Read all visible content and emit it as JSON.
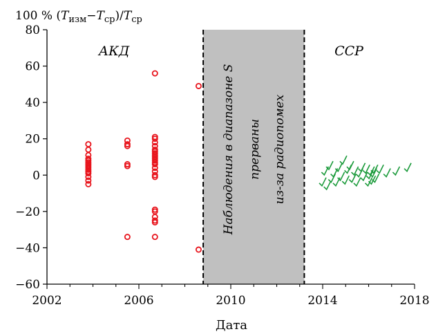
{
  "chart_data": {
    "type": "scatter",
    "ylabel": {
      "prefix": "100 % (",
      "t1": "T",
      "t1_sub": "изм",
      "minus": "−",
      "t2": "T",
      "t2_sub": "ср",
      "close": ")/",
      "t3": "T",
      "t3_sub": "ср"
    },
    "xlabel": "Дата",
    "xlim": [
      2002,
      2018
    ],
    "ylim": [
      -60,
      80
    ],
    "xticks": [
      2002,
      2006,
      2010,
      2014,
      2018
    ],
    "yticks": [
      -60,
      -40,
      -20,
      0,
      20,
      40,
      60,
      80
    ],
    "ytick_labels": [
      "−60",
      "−40",
      "−20",
      "0",
      "20",
      "40",
      "60",
      "80"
    ],
    "regions": [
      {
        "label": "АКД"
      },
      {
        "label": "ССР"
      }
    ],
    "gap": {
      "x_range": [
        2008.8,
        2013.2
      ],
      "fill": "#c0c0c0",
      "lines": [
        "Наблюдения в диапазоне S",
        "прерваны",
        "из-за радиопомех"
      ]
    },
    "series": [
      {
        "marker": "circle",
        "color": "#e8141c",
        "points": [
          [
            2003.8,
            17
          ],
          [
            2003.8,
            14
          ],
          [
            2003.8,
            11
          ],
          [
            2003.8,
            9
          ],
          [
            2003.8,
            8
          ],
          [
            2003.8,
            7
          ],
          [
            2003.8,
            6
          ],
          [
            2003.8,
            5
          ],
          [
            2003.8,
            4
          ],
          [
            2003.8,
            3
          ],
          [
            2003.8,
            2
          ],
          [
            2003.8,
            1
          ],
          [
            2003.8,
            -1
          ],
          [
            2003.8,
            -3
          ],
          [
            2003.8,
            -5
          ],
          [
            2005.5,
            19
          ],
          [
            2005.5,
            17
          ],
          [
            2005.5,
            16
          ],
          [
            2005.5,
            6
          ],
          [
            2005.5,
            5
          ],
          [
            2005.5,
            -34
          ],
          [
            2006.7,
            56
          ],
          [
            2006.7,
            21
          ],
          [
            2006.7,
            20
          ],
          [
            2006.7,
            18
          ],
          [
            2006.7,
            16
          ],
          [
            2006.7,
            14
          ],
          [
            2006.7,
            13
          ],
          [
            2006.7,
            12
          ],
          [
            2006.7,
            11
          ],
          [
            2006.7,
            10
          ],
          [
            2006.7,
            9
          ],
          [
            2006.7,
            8
          ],
          [
            2006.7,
            7
          ],
          [
            2006.7,
            6
          ],
          [
            2006.7,
            4
          ],
          [
            2006.7,
            2
          ],
          [
            2006.7,
            0
          ],
          [
            2006.7,
            -1
          ],
          [
            2006.7,
            -19
          ],
          [
            2006.7,
            -20
          ],
          [
            2006.7,
            -23
          ],
          [
            2006.7,
            -25
          ],
          [
            2006.7,
            -26
          ],
          [
            2006.7,
            -34
          ],
          [
            2008.6,
            49
          ],
          [
            2008.6,
            -41
          ]
        ]
      },
      {
        "marker": "check",
        "color": "#1a9a3a",
        "points": [
          [
            2014.0,
            -4
          ],
          [
            2014.1,
            2
          ],
          [
            2014.2,
            -6
          ],
          [
            2014.3,
            5
          ],
          [
            2014.4,
            -2
          ],
          [
            2014.5,
            1
          ],
          [
            2014.6,
            -4
          ],
          [
            2014.7,
            4
          ],
          [
            2014.8,
            -1
          ],
          [
            2014.9,
            8
          ],
          [
            2015.0,
            -3
          ],
          [
            2015.1,
            3
          ],
          [
            2015.2,
            5
          ],
          [
            2015.3,
            -2
          ],
          [
            2015.4,
            2
          ],
          [
            2015.5,
            -4
          ],
          [
            2015.6,
            1
          ],
          [
            2015.7,
            4
          ],
          [
            2015.8,
            -1
          ],
          [
            2015.9,
            3
          ],
          [
            2016.0,
            -4
          ],
          [
            2016.05,
            0
          ],
          [
            2016.1,
            2
          ],
          [
            2016.15,
            -3
          ],
          [
            2016.2,
            1
          ],
          [
            2016.25,
            3
          ],
          [
            2016.3,
            -2
          ],
          [
            2016.5,
            3
          ],
          [
            2016.8,
            1
          ],
          [
            2017.2,
            2
          ],
          [
            2017.7,
            4
          ]
        ]
      }
    ]
  }
}
